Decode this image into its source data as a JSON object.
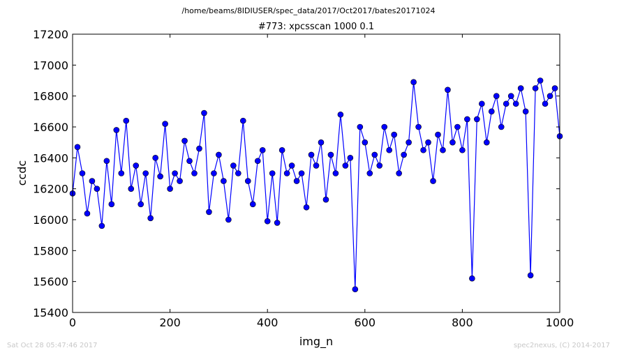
{
  "header": {
    "path": "/home/beams/8IDIUSER/spec_data/2017/Oct2017/bates20171024"
  },
  "footer": {
    "timestamp": "Sat Oct 28 05:47:46 2017",
    "credit": "spec2nexus, (C) 2014-2017"
  },
  "chart_data": {
    "type": "line",
    "title": "#773: xpcsscan 1000 0.1",
    "xlabel": "img_n",
    "ylabel": "ccdc",
    "xlim": [
      0,
      1000
    ],
    "ylim": [
      15400,
      17200
    ],
    "xticks": [
      0,
      200,
      400,
      600,
      800,
      1000
    ],
    "yticks": [
      15400,
      15600,
      15800,
      16000,
      16200,
      16400,
      16600,
      16800,
      17000,
      17200
    ],
    "series_color": "#0000ff",
    "marker": "circle",
    "grid": false,
    "legend": "none",
    "series": [
      {
        "x": [
          0,
          10,
          20,
          30,
          40,
          50,
          60,
          70,
          80,
          90,
          100,
          110,
          120,
          130,
          140,
          150,
          160,
          170,
          180,
          190,
          200,
          210,
          220,
          230,
          240,
          250,
          260,
          270,
          280,
          290,
          300,
          310,
          320,
          330,
          340,
          350,
          360,
          370,
          380,
          390,
          400,
          410,
          420,
          430,
          440,
          450,
          460,
          470,
          480,
          490,
          500,
          510,
          520,
          530,
          540,
          550,
          560,
          570,
          580,
          590,
          600,
          610,
          620,
          630,
          640,
          650,
          660,
          670,
          680,
          690,
          700,
          710,
          720,
          730,
          740,
          750,
          760,
          770,
          780,
          790,
          800,
          810,
          820,
          830,
          840,
          850,
          860,
          870,
          880,
          890,
          900,
          910,
          920,
          930,
          940,
          950,
          960,
          970,
          980,
          990,
          1000
        ],
        "y": [
          16170,
          16470,
          16300,
          16040,
          16250,
          16200,
          15960,
          16380,
          16100,
          16580,
          16300,
          16640,
          16200,
          16350,
          16100,
          16300,
          16010,
          16400,
          16280,
          16620,
          16200,
          16300,
          16250,
          16510,
          16380,
          16300,
          16460,
          16690,
          16050,
          16300,
          16420,
          16250,
          16000,
          16350,
          16300,
          16640,
          16250,
          16100,
          16380,
          16450,
          15990,
          16300,
          15980,
          16450,
          16300,
          16350,
          16250,
          16300,
          16080,
          16420,
          16350,
          16500,
          16130,
          16420,
          16300,
          16680,
          16350,
          16400,
          15550,
          16600,
          16500,
          16300,
          16420,
          16350,
          16600,
          16450,
          16550,
          16300,
          16420,
          16500,
          16890,
          16600,
          16450,
          16500,
          16250,
          16550,
          16450,
          16840,
          16500,
          16600,
          16450,
          16650,
          15620,
          16650,
          16750,
          16500,
          16700,
          16800,
          16600,
          16750,
          16800,
          16750,
          16850,
          16700,
          15640,
          16850,
          16900,
          16750,
          16800,
          16850,
          16540
        ]
      }
    ]
  }
}
